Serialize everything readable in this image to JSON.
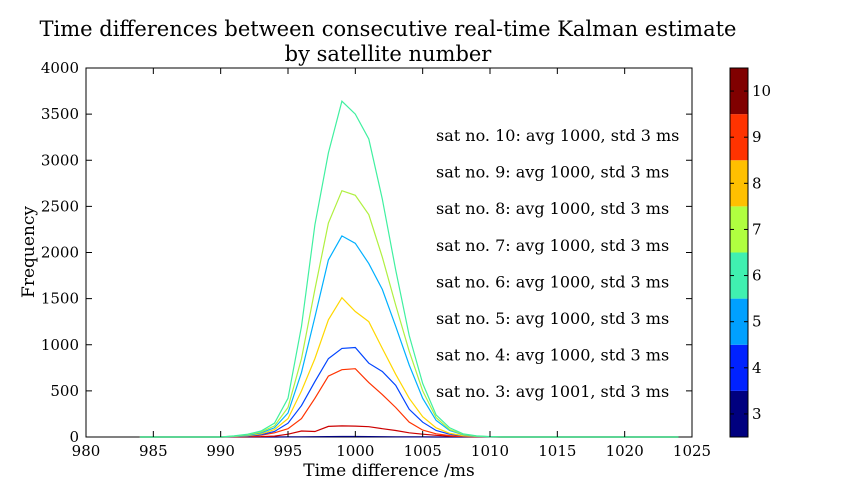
{
  "chart_data": {
    "type": "line",
    "title": "Time differences between consecutive real-time Kalman estimate",
    "subtitle": "by satellite number",
    "xlabel": "Time difference /ms",
    "ylabel": "Frequency",
    "xlim": [
      980,
      1025
    ],
    "ylim": [
      0,
      4000
    ],
    "xticks": [
      "980",
      "985",
      "990",
      "995",
      "1000",
      "1005",
      "1010",
      "1015",
      "1020",
      "1025"
    ],
    "yticks": [
      "0",
      "500",
      "1000",
      "1500",
      "2000",
      "2500",
      "3000",
      "3500",
      "4000"
    ],
    "grid": false,
    "x": [
      984,
      986,
      988,
      990,
      991,
      992,
      993,
      994,
      995,
      996,
      997,
      998,
      999,
      1000,
      1001,
      1002,
      1003,
      1004,
      1005,
      1006,
      1007,
      1008,
      1009,
      1010,
      1011,
      1012,
      1014,
      1016,
      1018,
      1020,
      1022,
      1024
    ],
    "series": [
      {
        "name": "3",
        "color": "#00007f",
        "values": [
          0,
          0,
          0,
          0,
          0,
          0,
          0,
          0,
          1,
          2,
          3,
          4,
          5,
          5,
          4,
          3,
          2,
          1,
          1,
          0,
          0,
          0,
          0,
          0,
          0,
          0,
          0,
          0,
          0,
          0,
          0,
          0
        ]
      },
      {
        "name": "4",
        "color": "#cc0000",
        "values": [
          0,
          0,
          0,
          0,
          1,
          2,
          4,
          10,
          30,
          65,
          60,
          115,
          120,
          118,
          112,
          90,
          70,
          45,
          30,
          18,
          10,
          5,
          2,
          1,
          0,
          0,
          0,
          0,
          0,
          0,
          0,
          0
        ]
      },
      {
        "name": "5",
        "color": "#ff3300",
        "values": [
          0,
          0,
          0,
          0,
          3,
          8,
          20,
          45,
          90,
          200,
          420,
          660,
          730,
          740,
          590,
          460,
          320,
          160,
          75,
          35,
          15,
          6,
          2,
          1,
          0,
          0,
          0,
          0,
          0,
          0,
          0,
          0
        ]
      },
      {
        "name": "6",
        "color": "#0044ff",
        "values": [
          0,
          0,
          0,
          0,
          5,
          10,
          25,
          60,
          150,
          340,
          600,
          850,
          960,
          970,
          800,
          710,
          560,
          300,
          160,
          70,
          30,
          12,
          5,
          2,
          0,
          0,
          0,
          0,
          0,
          0,
          0,
          0
        ]
      },
      {
        "name": "7",
        "color": "#ffd700",
        "values": [
          0,
          0,
          0,
          0,
          6,
          15,
          35,
          80,
          200,
          500,
          850,
          1270,
          1510,
          1360,
          1250,
          960,
          680,
          420,
          220,
          100,
          40,
          15,
          6,
          2,
          0,
          0,
          0,
          0,
          0,
          0,
          0,
          0
        ]
      },
      {
        "name": "8",
        "color": "#00b0ff",
        "values": [
          0,
          0,
          0,
          0,
          8,
          20,
          45,
          100,
          260,
          700,
          1300,
          1920,
          2180,
          2100,
          1880,
          1600,
          1200,
          780,
          420,
          180,
          70,
          25,
          8,
          3,
          0,
          0,
          0,
          0,
          0,
          0,
          0,
          0
        ]
      },
      {
        "name": "9",
        "color": "#b0f040",
        "values": [
          0,
          0,
          0,
          0,
          10,
          25,
          55,
          120,
          320,
          850,
          1600,
          2320,
          2670,
          2620,
          2410,
          1950,
          1430,
          930,
          500,
          210,
          80,
          30,
          10,
          3,
          0,
          0,
          0,
          0,
          0,
          0,
          0,
          0
        ]
      },
      {
        "name": "10",
        "color": "#40f0a0",
        "values": [
          0,
          0,
          0,
          0,
          12,
          30,
          65,
          150,
          420,
          1200,
          2300,
          3080,
          3640,
          3500,
          3230,
          2580,
          1810,
          1100,
          580,
          240,
          100,
          35,
          12,
          4,
          0,
          0,
          0,
          0,
          0,
          0,
          0,
          0
        ]
      }
    ],
    "annotations": [
      "sat no. 10: avg 1000, std 3 ms",
      "sat no. 9: avg 1000, std 3 ms",
      "sat no. 8: avg 1000, std 3 ms",
      "sat no. 7: avg 1000, std 3 ms",
      "sat no. 6: avg 1000, std 3 ms",
      "sat no. 5: avg 1000, std 3 ms",
      "sat no. 4: avg 1000, std 3 ms",
      "sat no. 3: avg 1001, std 3 ms"
    ],
    "colorbar": {
      "labels": [
        "3",
        "4",
        "5",
        "6",
        "7",
        "8",
        "9",
        "10"
      ],
      "colors": [
        "#00007f",
        "#0022ff",
        "#00a0ff",
        "#40f0b0",
        "#b0ff40",
        "#ffc000",
        "#ff3300",
        "#800000"
      ]
    }
  }
}
